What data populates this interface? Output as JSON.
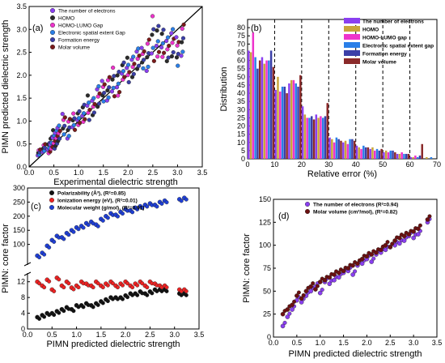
{
  "chart_data": [
    {
      "panel": "(a)",
      "type": "scatter",
      "xlabel": "Experimental dielectric strength",
      "ylabel": "PIMN predicted dielectric strength",
      "xlim": [
        0,
        3.5
      ],
      "ylim": [
        0,
        3.5
      ],
      "xticks": [
        "0.0",
        "0.5",
        "1.0",
        "1.5",
        "2.0",
        "2.5",
        "3.0",
        "3.5"
      ],
      "yticks": [
        "0.0",
        "0.5",
        "1.0",
        "1.5",
        "2.0",
        "2.5",
        "3.0",
        "3.5"
      ],
      "diagonal_line": true,
      "legend": [
        "The number of electrons",
        "HOMO",
        "HOMO-LUMO Gap",
        "Electronic spatial extent Gap",
        "Formation energy",
        "Molar volume"
      ],
      "legend_position": "top",
      "colors": [
        "#8a3ff0",
        "#2b2b2b",
        "#ee33cc",
        "#2a7fe8",
        "#3b3fa8",
        "#7a1a1a"
      ],
      "experimental_x": [
        0.2,
        0.3,
        0.4,
        0.45,
        0.5,
        0.55,
        0.6,
        0.7,
        0.8,
        0.9,
        1.0,
        1.1,
        1.2,
        1.3,
        1.4,
        1.5,
        1.6,
        1.7,
        1.8,
        1.9,
        2.0,
        2.1,
        2.2,
        2.3,
        2.4,
        2.5,
        2.6,
        2.7,
        2.8,
        2.9,
        3.0,
        3.1
      ],
      "predicted_low": [
        0.25,
        0.3,
        0.3,
        0.35,
        0.4,
        0.45,
        0.5,
        0.7,
        0.6,
        0.8,
        0.9,
        0.9,
        1.0,
        1.1,
        1.2,
        1.4,
        1.4,
        1.5,
        1.5,
        1.8,
        1.8,
        1.9,
        2.0,
        2.1,
        2.0,
        2.2,
        2.3,
        2.2,
        2.3,
        2.3,
        2.2,
        2.4
      ],
      "predicted_high": [
        0.4,
        0.5,
        0.6,
        0.7,
        0.85,
        0.9,
        0.95,
        1.2,
        1.1,
        1.2,
        1.3,
        1.4,
        1.6,
        1.6,
        1.8,
        1.9,
        2.0,
        2.2,
        2.2,
        2.3,
        2.4,
        2.5,
        2.6,
        2.6,
        2.8,
        3.3,
        3.2,
        3.0,
        3.0,
        3.1,
        2.9,
        3.2
      ]
    },
    {
      "panel": "(b)",
      "type": "bar",
      "xlabel": "Relative error (%)",
      "ylabel": "Distribution",
      "xlim": [
        0,
        70
      ],
      "ylim": [
        0,
        85
      ],
      "xticks": [
        "0",
        "10",
        "20",
        "30",
        "40",
        "50",
        "60",
        "70"
      ],
      "yticks": [
        "0",
        "5",
        "10",
        "15",
        "20",
        "25",
        "30",
        "35",
        "40",
        "45",
        "50",
        "55",
        "60",
        "65",
        "70",
        "75",
        "80"
      ],
      "bin_centers": [
        2.5,
        7.5,
        12.5,
        17.5,
        22.5,
        27.5,
        32.5,
        37.5,
        42.5,
        47.5,
        52.5,
        57.5,
        62.5,
        67.5
      ],
      "dashed_lines": [
        10,
        20,
        30,
        40,
        50,
        60
      ],
      "series": [
        {
          "name": "The number of electrons",
          "color": "#8a3ff0",
          "values": [
            66,
            62,
            42,
            46,
            32,
            27,
            13,
            10,
            8,
            6,
            4,
            3,
            1,
            0
          ]
        },
        {
          "name": "HOMO",
          "color": "#c9a63a",
          "values": [
            65,
            58,
            50,
            48,
            27,
            25,
            12,
            11,
            7,
            7,
            5,
            3,
            1,
            1
          ]
        },
        {
          "name": "HOMO-LUMO gap",
          "color": "#ee33cc",
          "values": [
            77,
            60,
            41,
            48,
            25,
            26,
            10,
            9,
            6,
            5,
            4,
            4,
            2,
            0
          ]
        },
        {
          "name": "Electronic spatial extent gap",
          "color": "#2a7fe8",
          "values": [
            62,
            60,
            44,
            46,
            25,
            25,
            13,
            12,
            8,
            6,
            5,
            3,
            1,
            1
          ]
        },
        {
          "name": "Formation energy",
          "color": "#3b3fa8",
          "values": [
            55,
            66,
            44,
            44,
            26,
            26,
            12,
            12,
            7,
            5,
            5,
            3,
            2,
            0
          ]
        },
        {
          "name": "Molar volume",
          "color": "#8a2a2a",
          "values": [
            60,
            56,
            40,
            51,
            24,
            34,
            11,
            11,
            7,
            6,
            4,
            3,
            9,
            0
          ]
        }
      ],
      "legend": [
        "The number of electrons",
        "HOMO",
        "HOMO-LUMO gap",
        "Electronic spatial extent gap",
        "Formation energy",
        "Molar volume"
      ],
      "legend_position": "top-right"
    },
    {
      "panel": "(c)",
      "type": "scatter",
      "xlabel": "PIMN predicted dielectric strength",
      "ylabel": "PIMN: core factor",
      "xlim": [
        0,
        3.5
      ],
      "broken_y_axis": true,
      "upper_ylim": [
        30,
        300
      ],
      "upper_yticks": [
        "100",
        "150",
        "200",
        "250",
        "300"
      ],
      "lower_ylim": [
        0,
        14
      ],
      "lower_yticks": [
        "0",
        "4",
        "8",
        "12"
      ],
      "xticks": [
        "0.0",
        "0.5",
        "1.0",
        "1.5",
        "2.0",
        "2.5",
        "3.0",
        "3.5"
      ],
      "legend": [
        "Polarizability (Å³), (R²=0.85)",
        "Ionization energy (eV), (R²=0.01)",
        "Molecular weight (g/mol), (R²=0.91)"
      ],
      "legend_position": "top-left",
      "series": [
        {
          "name": "Polarizability (Å³), (R²=0.85)",
          "color": "#111111",
          "x": [
            0.2,
            0.3,
            0.4,
            0.5,
            0.6,
            0.7,
            0.8,
            0.9,
            1.0,
            1.1,
            1.2,
            1.3,
            1.4,
            1.5,
            1.6,
            1.7,
            1.8,
            1.9,
            2.0,
            2.1,
            2.2,
            2.3,
            2.4,
            2.5,
            2.6,
            2.7,
            2.8,
            3.1,
            3.2
          ],
          "y": [
            3,
            3.5,
            4,
            4,
            4.5,
            5,
            5.5,
            5,
            6,
            6,
            6.5,
            6,
            6.5,
            7,
            7.5,
            8,
            8,
            8,
            8.5,
            9,
            9,
            9.5,
            9,
            9.5,
            10,
            10,
            10,
            9,
            9
          ]
        },
        {
          "name": "Ionization energy (eV), (R²=0.01)",
          "color": "#ee2222",
          "x": [
            0.2,
            0.3,
            0.4,
            0.5,
            0.6,
            0.7,
            0.8,
            0.9,
            1.0,
            1.1,
            1.2,
            1.3,
            1.4,
            1.5,
            1.6,
            1.7,
            1.8,
            1.9,
            2.0,
            2.1,
            2.2,
            2.3,
            2.4,
            2.5,
            2.6,
            2.7,
            2.8,
            3.1,
            3.2
          ],
          "y": [
            12,
            11,
            12.5,
            10,
            13,
            11,
            12,
            10.5,
            11,
            12,
            11.5,
            11,
            12,
            11,
            11.5,
            12,
            11,
            11.5,
            12,
            11,
            11.5,
            12,
            11,
            12,
            11.5,
            11,
            11,
            10,
            10
          ]
        },
        {
          "name": "Molecular weight (g/mol), (R²=0.91)",
          "color": "#1f3fd6",
          "x": [
            0.2,
            0.3,
            0.4,
            0.5,
            0.6,
            0.7,
            0.8,
            0.9,
            1.0,
            1.1,
            1.2,
            1.3,
            1.4,
            1.5,
            1.6,
            1.7,
            1.8,
            1.9,
            2.0,
            2.1,
            2.2,
            2.3,
            2.4,
            2.5,
            2.6,
            2.7,
            2.8,
            3.1,
            3.2
          ],
          "y": [
            60,
            70,
            95,
            115,
            130,
            125,
            140,
            150,
            160,
            165,
            175,
            180,
            170,
            190,
            200,
            210,
            205,
            215,
            225,
            220,
            230,
            235,
            240,
            245,
            240,
            250,
            255,
            260,
            265
          ]
        }
      ]
    },
    {
      "panel": "(d)",
      "type": "scatter",
      "xlabel": "PIMN predicted dielectric strength",
      "ylabel": "PIMN: core factor",
      "xlim": [
        0,
        3.5
      ],
      "ylim": [
        0,
        150
      ],
      "xticks": [
        "0.0",
        "0.5",
        "1.0",
        "1.5",
        "2.0",
        "2.5",
        "3.0",
        "3.5"
      ],
      "yticks": [
        "0",
        "25",
        "50",
        "75",
        "100",
        "125",
        "150"
      ],
      "legend": [
        "The number of electrons (R²=0.94)",
        "Molar volume (cm³/mol), (R²=0.82)"
      ],
      "legend_position": "top-left",
      "series": [
        {
          "name": "The number of electrons (R²=0.94)",
          "color": "#8a3ff0",
          "x": [
            0.2,
            0.3,
            0.4,
            0.5,
            0.6,
            0.7,
            0.8,
            0.9,
            1.0,
            1.1,
            1.2,
            1.3,
            1.4,
            1.5,
            1.6,
            1.7,
            1.8,
            1.9,
            2.0,
            2.1,
            2.2,
            2.3,
            2.4,
            2.5,
            2.6,
            2.7,
            2.8,
            2.9,
            3.0,
            3.1,
            3.3
          ],
          "y": [
            12,
            22,
            30,
            40,
            38,
            45,
            50,
            55,
            48,
            60,
            58,
            62,
            65,
            70,
            72,
            68,
            78,
            80,
            85,
            82,
            90,
            92,
            95,
            98,
            100,
            102,
            105,
            110,
            108,
            112,
            125
          ]
        },
        {
          "name": "Molar volume (cm³/mol), (R²=0.82)",
          "color": "#6b1010",
          "x": [
            0.2,
            0.3,
            0.4,
            0.5,
            0.6,
            0.7,
            0.8,
            0.9,
            1.0,
            1.1,
            1.2,
            1.3,
            1.4,
            1.5,
            1.6,
            1.7,
            1.8,
            1.9,
            2.0,
            2.1,
            2.2,
            2.3,
            2.4,
            2.5,
            2.6,
            2.7,
            2.8,
            2.9,
            3.0,
            3.1,
            3.3
          ],
          "y": [
            25,
            30,
            35,
            45,
            42,
            50,
            55,
            52,
            60,
            62,
            65,
            68,
            70,
            72,
            75,
            78,
            80,
            85,
            88,
            90,
            92,
            95,
            100,
            98,
            105,
            108,
            110,
            112,
            115,
            118,
            128
          ]
        }
      ]
    }
  ]
}
